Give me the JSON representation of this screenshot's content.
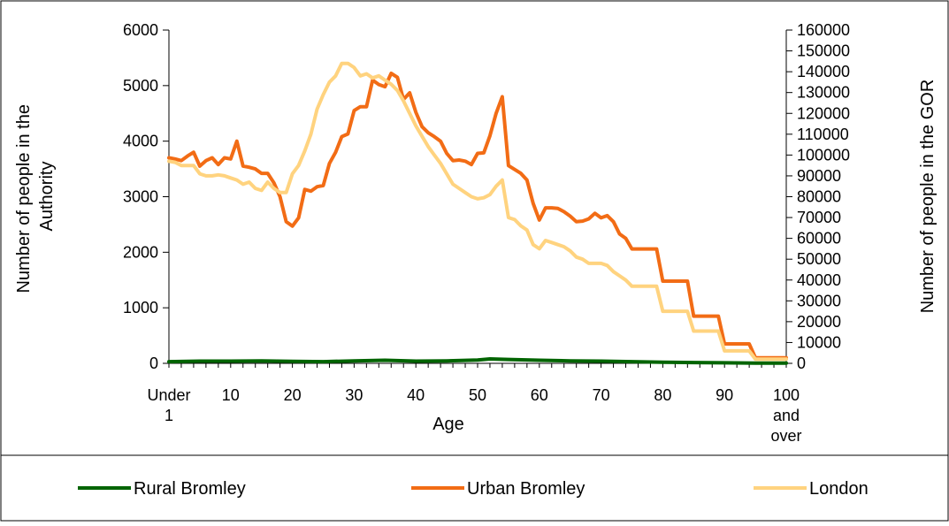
{
  "chart_data": {
    "type": "line",
    "xlabel": "Age",
    "ylabel": "Number of people in the Authority",
    "y2label": "Number of people in the GOR",
    "ylim": [
      0,
      6000
    ],
    "yticks": [
      "0",
      "1000",
      "2000",
      "3000",
      "4000",
      "5000",
      "6000"
    ],
    "y2lim": [
      0,
      160000
    ],
    "y2ticks": [
      "0",
      "10000",
      "20000",
      "30000",
      "40000",
      "50000",
      "60000",
      "70000",
      "80000",
      "90000",
      "100000",
      "110000",
      "120000",
      "130000",
      "140000",
      "150000",
      "160000"
    ],
    "xlim": [
      0,
      100
    ],
    "xticks": [
      {
        "value": 0,
        "label": "Under 1"
      },
      {
        "value": 10,
        "label": "10"
      },
      {
        "value": 20,
        "label": "20"
      },
      {
        "value": 30,
        "label": "30"
      },
      {
        "value": 40,
        "label": "40"
      },
      {
        "value": 50,
        "label": "50"
      },
      {
        "value": 60,
        "label": "60"
      },
      {
        "value": 70,
        "label": "70"
      },
      {
        "value": 80,
        "label": "80"
      },
      {
        "value": 90,
        "label": "90"
      },
      {
        "value": 100,
        "label": "100 and over"
      }
    ],
    "grid": false,
    "legend_position": "bottom",
    "series": [
      {
        "name": "Rural Bromley",
        "axis": "left",
        "color": "#006400",
        "x": [
          0,
          5,
          10,
          15,
          20,
          25,
          30,
          35,
          40,
          45,
          50,
          52,
          55,
          60,
          65,
          70,
          75,
          80,
          85,
          90,
          95,
          100
        ],
        "values": [
          30,
          40,
          40,
          45,
          35,
          30,
          45,
          55,
          40,
          45,
          60,
          80,
          70,
          55,
          45,
          40,
          30,
          20,
          15,
          10,
          5,
          5
        ]
      },
      {
        "name": "Urban Bromley",
        "axis": "left",
        "color": "#F26C15",
        "x": [
          0,
          1,
          2,
          3,
          4,
          5,
          6,
          7,
          8,
          9,
          10,
          11,
          12,
          13,
          14,
          15,
          16,
          17,
          18,
          19,
          20,
          21,
          22,
          23,
          24,
          25,
          26,
          27,
          28,
          29,
          30,
          31,
          32,
          33,
          34,
          35,
          36,
          37,
          38,
          39,
          40,
          41,
          42,
          43,
          44,
          45,
          46,
          47,
          48,
          49,
          50,
          51,
          52,
          53,
          54,
          55,
          56,
          57,
          58,
          59,
          60,
          61,
          62,
          63,
          64,
          65,
          66,
          67,
          68,
          69,
          70,
          71,
          72,
          73,
          74,
          75,
          76,
          77,
          78,
          79,
          80,
          81,
          82,
          83,
          84,
          85,
          86,
          87,
          88,
          89,
          90,
          91,
          92,
          93,
          94,
          95,
          96,
          97,
          98,
          99,
          100
        ],
        "values": [
          3700,
          3680,
          3650,
          3730,
          3800,
          3550,
          3650,
          3700,
          3580,
          3700,
          3680,
          4000,
          3550,
          3530,
          3500,
          3420,
          3420,
          3250,
          3000,
          2550,
          2470,
          2620,
          3130,
          3100,
          3180,
          3200,
          3600,
          3800,
          4080,
          4130,
          4550,
          4620,
          4620,
          5100,
          5020,
          4980,
          5220,
          5150,
          4750,
          4870,
          4520,
          4260,
          4150,
          4080,
          4000,
          3780,
          3650,
          3660,
          3640,
          3580,
          3780,
          3790,
          4100,
          4500,
          4800,
          3560,
          3490,
          3420,
          3300,
          2880,
          2580,
          2800,
          2800,
          2790,
          2730,
          2650,
          2550,
          2560,
          2600,
          2700,
          2620,
          2660,
          2550,
          2330,
          2250,
          2060,
          2060,
          2060,
          2060,
          2060,
          1480,
          1480,
          1480,
          1480,
          1480,
          850,
          850,
          850,
          850,
          850,
          350,
          350,
          350,
          350,
          350,
          100,
          100,
          100,
          100,
          100,
          100
        ]
      },
      {
        "name": "London",
        "axis": "right",
        "color": "#FFD37F",
        "x": [
          0,
          1,
          2,
          3,
          4,
          5,
          6,
          7,
          8,
          9,
          10,
          11,
          12,
          13,
          14,
          15,
          16,
          17,
          18,
          19,
          20,
          21,
          22,
          23,
          24,
          25,
          26,
          27,
          28,
          29,
          30,
          31,
          32,
          33,
          34,
          35,
          36,
          37,
          38,
          39,
          40,
          41,
          42,
          43,
          44,
          45,
          46,
          47,
          48,
          49,
          50,
          51,
          52,
          53,
          54,
          55,
          56,
          57,
          58,
          59,
          60,
          61,
          62,
          63,
          64,
          65,
          66,
          67,
          68,
          69,
          70,
          71,
          72,
          73,
          74,
          75,
          76,
          77,
          78,
          79,
          80,
          81,
          82,
          83,
          84,
          85,
          86,
          87,
          88,
          89,
          90,
          91,
          92,
          93,
          94,
          95,
          96,
          97,
          98,
          99,
          100
        ],
        "values": [
          97000,
          96500,
          95000,
          95000,
          95000,
          91000,
          90000,
          90000,
          90500,
          90000,
          89000,
          88000,
          86000,
          87000,
          84000,
          83000,
          87000,
          84000,
          82000,
          82000,
          91000,
          95000,
          102000,
          110000,
          122000,
          129000,
          135000,
          138000,
          144000,
          144000,
          142000,
          138000,
          139000,
          137000,
          138000,
          136000,
          134000,
          131000,
          126000,
          120000,
          114000,
          109000,
          104000,
          100000,
          96000,
          91000,
          86000,
          84000,
          82000,
          80000,
          79000,
          79500,
          81000,
          85000,
          88000,
          70000,
          69000,
          66000,
          64000,
          57000,
          55000,
          59000,
          58000,
          57000,
          56000,
          54000,
          51000,
          50000,
          48000,
          48000,
          48000,
          47000,
          44000,
          42000,
          40000,
          37000,
          37000,
          37000,
          37000,
          37000,
          25000,
          25000,
          25000,
          25000,
          25000,
          15500,
          15500,
          15500,
          15500,
          15500,
          6000,
          6000,
          6000,
          6000,
          6000,
          2000,
          2000,
          2000,
          2000,
          2000,
          2000
        ]
      }
    ]
  }
}
